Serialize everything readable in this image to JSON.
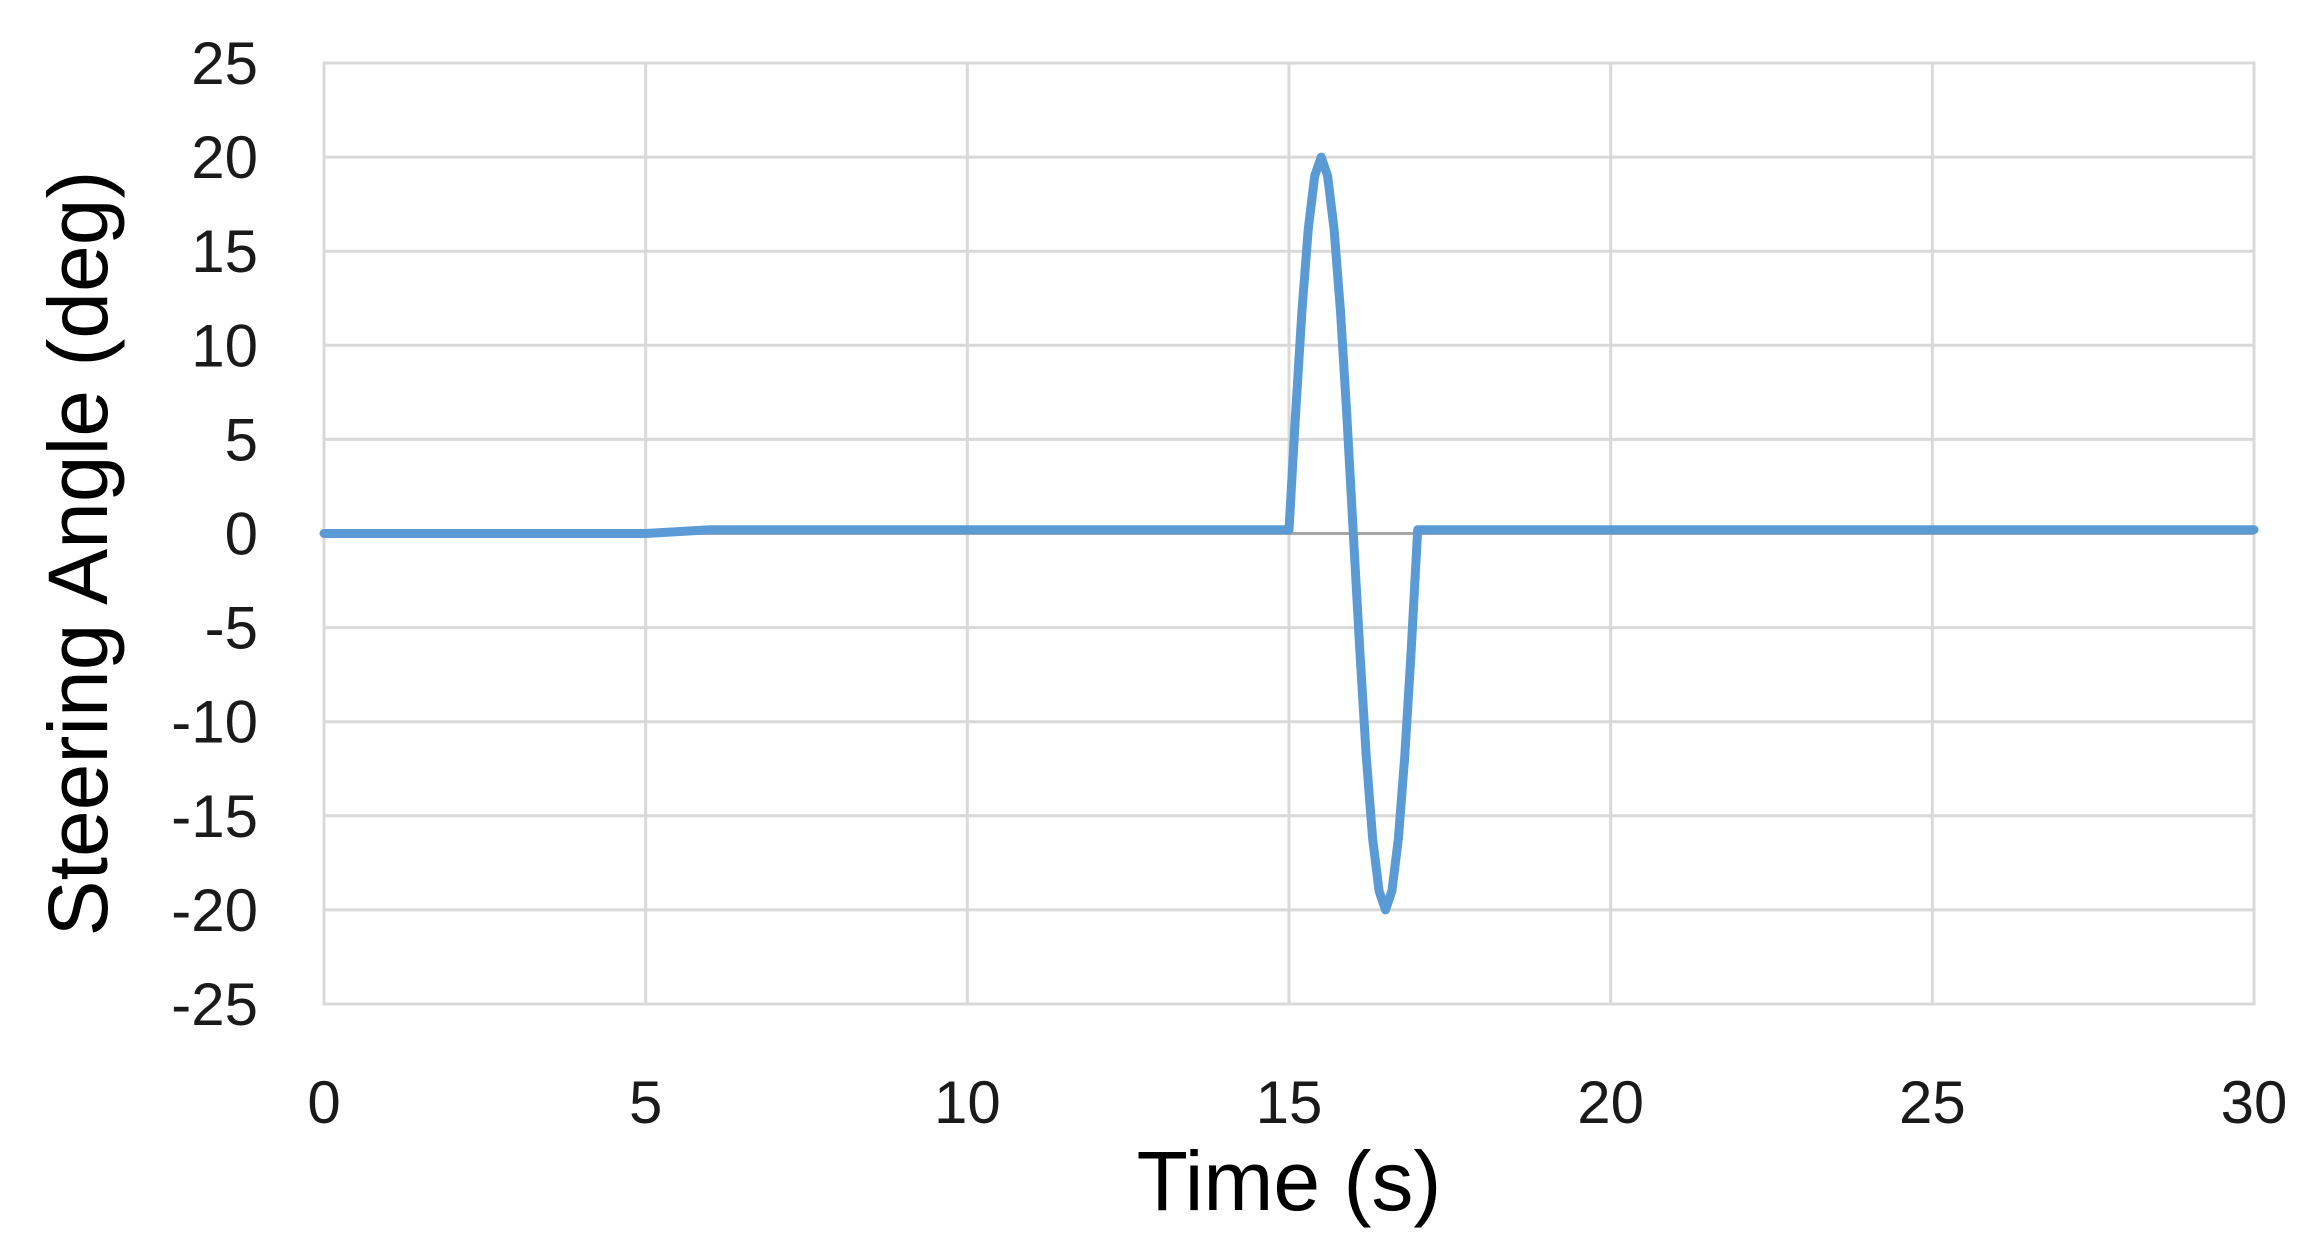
{
  "chart_data": {
    "type": "line",
    "title": "",
    "xlabel": "Time (s)",
    "ylabel": "Steering Angle (deg)",
    "xlim": [
      0,
      30
    ],
    "ylim": [
      -25,
      25
    ],
    "x_ticks": [
      0,
      5,
      10,
      15,
      20,
      25,
      30
    ],
    "y_ticks": [
      25,
      20,
      15,
      10,
      5,
      0,
      -5,
      -10,
      -15,
      -20,
      -25
    ],
    "x_tick_labels": [
      "0",
      "5",
      "10",
      "15",
      "20",
      "25",
      "30"
    ],
    "y_tick_labels": [
      "25",
      "20",
      "15",
      "10",
      "5",
      "0",
      "-5",
      "-10",
      "-15",
      "-20",
      "-25"
    ],
    "grid": true,
    "legend": "none",
    "series": [
      {
        "color": "#5b9bd5",
        "x": [
          0,
          5.0,
          6.0,
          15.0,
          15.1,
          15.2,
          15.3,
          15.4,
          15.5,
          15.6,
          15.7,
          15.8,
          15.9,
          16.0,
          16.1,
          16.2,
          16.3,
          16.4,
          16.5,
          16.6,
          16.7,
          16.8,
          16.9,
          17.0,
          30
        ],
        "y": [
          0,
          0,
          0.2,
          0.2,
          6.2,
          11.8,
          16.2,
          19.0,
          20.0,
          19.0,
          16.2,
          11.8,
          6.2,
          0.0,
          -6.2,
          -11.8,
          -16.2,
          -19.0,
          -20.0,
          -19.0,
          -16.2,
          -11.8,
          -6.2,
          0.2,
          0.2
        ]
      }
    ],
    "colors": {
      "line": "#5b9bd5",
      "grid": "#d9d9d9",
      "plot_border": "#d9d9d9",
      "zero_line": "#a6a6a6"
    }
  }
}
